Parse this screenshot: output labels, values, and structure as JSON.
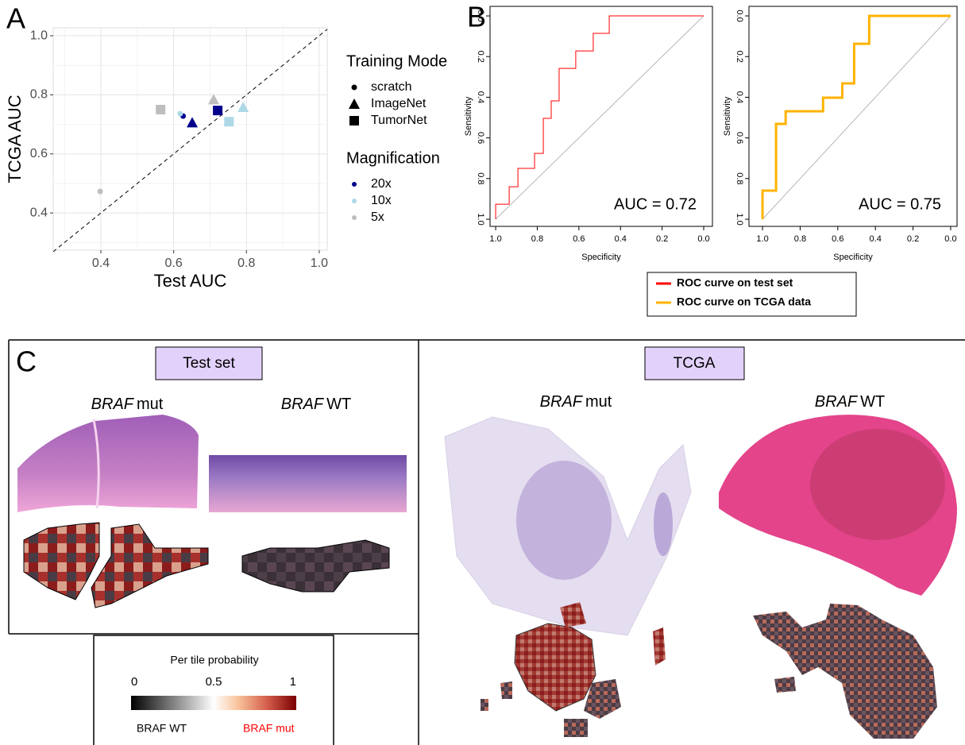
{
  "panel_labels": [
    "A",
    "B",
    "C"
  ],
  "chart_data": [
    {
      "type": "scatter",
      "x_label": "Test AUC",
      "y_label": "TCGA AUC",
      "xlim": [
        0.269,
        1.022
      ],
      "ylim": [
        0.274,
        1.027
      ],
      "xticks": [
        0.4,
        0.6,
        0.8,
        {
          "value": 1,
          "label": "1.0"
        }
      ],
      "yticks": [
        0.4,
        0.6,
        0.8,
        {
          "value": 1,
          "label": "1.0"
        }
      ],
      "minor_ticks": [
        0.3,
        0.5,
        0.7,
        0.9
      ],
      "grid": true,
      "shape_legend": {
        "title": "Training Mode",
        "labels": [
          "scratch",
          "ImageNet",
          "TumorNet"
        ]
      },
      "color_legend_title": "Magnification",
      "series": [
        {
          "name": "20x",
          "color": "#00008b",
          "shapes": [
            "scratch",
            "ImageNet",
            "TumorNet"
          ],
          "x": [
            0.626,
            0.651,
            0.721
          ],
          "values": [
            0.728,
            0.706,
            0.747
          ]
        },
        {
          "name": "10x",
          "color": "#add8e6",
          "shapes": [
            "scratch",
            "ImageNet",
            "TumorNet"
          ],
          "x": [
            0.618,
            0.791,
            0.752
          ],
          "values": [
            0.736,
            0.758,
            0.709
          ]
        },
        {
          "name": "5x",
          "color": "#bebebe",
          "shapes": [
            "scratch",
            "ImageNet",
            "TumorNet"
          ],
          "x": [
            0.398,
            0.71,
            0.564
          ],
          "values": [
            0.473,
            0.784,
            0.75
          ]
        }
      ]
    },
    {
      "type": "line",
      "x_label": "Specificity",
      "y_label": "Sensitivity",
      "annotation": "AUC = 0.72",
      "xlim": [
        1.027,
        -0.042
      ],
      "ylim": [
        1.035,
        -0.047
      ],
      "xticks": [
        {
          "value": 1,
          "label": "1.0"
        },
        0.8,
        0.6,
        0.4,
        0.2,
        {
          "value": 0,
          "label": "0.0"
        }
      ],
      "yticks": [
        {
          "value": 0,
          "label": "0.0"
        },
        0.2,
        0.4,
        0.6,
        0.8,
        {
          "value": 1,
          "label": "1.0"
        }
      ],
      "series": [
        {
          "name": "ROC curve on test set",
          "color": "#ff0000",
          "width": 1,
          "x": [
            1.0,
            1.0,
            0.935,
            0.935,
            0.893,
            0.893,
            0.813,
            0.813,
            0.771,
            0.771,
            0.733,
            0.733,
            0.695,
            0.695,
            0.615,
            0.615,
            0.531,
            0.531,
            0.454,
            0.454,
            0.0
          ],
          "values": [
            1.0,
            0.926,
            0.926,
            0.84,
            0.84,
            0.75,
            0.75,
            0.676,
            0.676,
            0.504,
            0.504,
            0.418,
            0.418,
            0.258,
            0.258,
            0.172,
            0.172,
            0.086,
            0.086,
            0,
            0
          ]
        }
      ]
    },
    {
      "type": "line",
      "x_label": "Specificity",
      "y_label": "Sensitivity",
      "annotation": "AUC = 0.75",
      "xlim": [
        1.072,
        -0.034
      ],
      "ylim": [
        1.035,
        -0.047
      ],
      "xticks": [
        {
          "value": 1,
          "label": "1.0"
        },
        0.8,
        0.6,
        0.4,
        0.2,
        {
          "value": 0,
          "label": "0.0"
        }
      ],
      "yticks": [
        {
          "value": 0,
          "label": "0.0"
        },
        0.2,
        0.4,
        0.6,
        0.8,
        {
          "value": 1,
          "label": "1.0"
        }
      ],
      "series": [
        {
          "name": "ROC curve on TCGA data",
          "color": "#ffb300",
          "width": 3,
          "x": [
            1.0,
            1.0,
            0.928,
            0.928,
            0.877,
            0.877,
            0.678,
            0.678,
            0.576,
            0.576,
            0.513,
            0.513,
            0.433,
            0.433,
            0.0
          ],
          "values": [
            1.0,
            0.859,
            0.859,
            0.531,
            0.531,
            0.469,
            0.469,
            0.402,
            0.402,
            0.332,
            0.332,
            0.137,
            0.137,
            0,
            0
          ]
        }
      ]
    }
  ],
  "panel_c": {
    "test_set": {
      "title": "Test set",
      "mut": {
        "gene": "BRAF",
        "status": "mut"
      },
      "wt": {
        "gene": "BRAF",
        "status": "WT"
      }
    },
    "tcga": {
      "title": "TCGA",
      "mut": {
        "gene": "BRAF",
        "status": "mut"
      },
      "wt": {
        "gene": "BRAF",
        "status": "WT"
      }
    },
    "colorbar": {
      "title": "Per tile probability",
      "ticks": [
        0,
        0.5,
        1
      ],
      "low_label": "BRAF WT",
      "high_label": "BRAF mut"
    }
  }
}
